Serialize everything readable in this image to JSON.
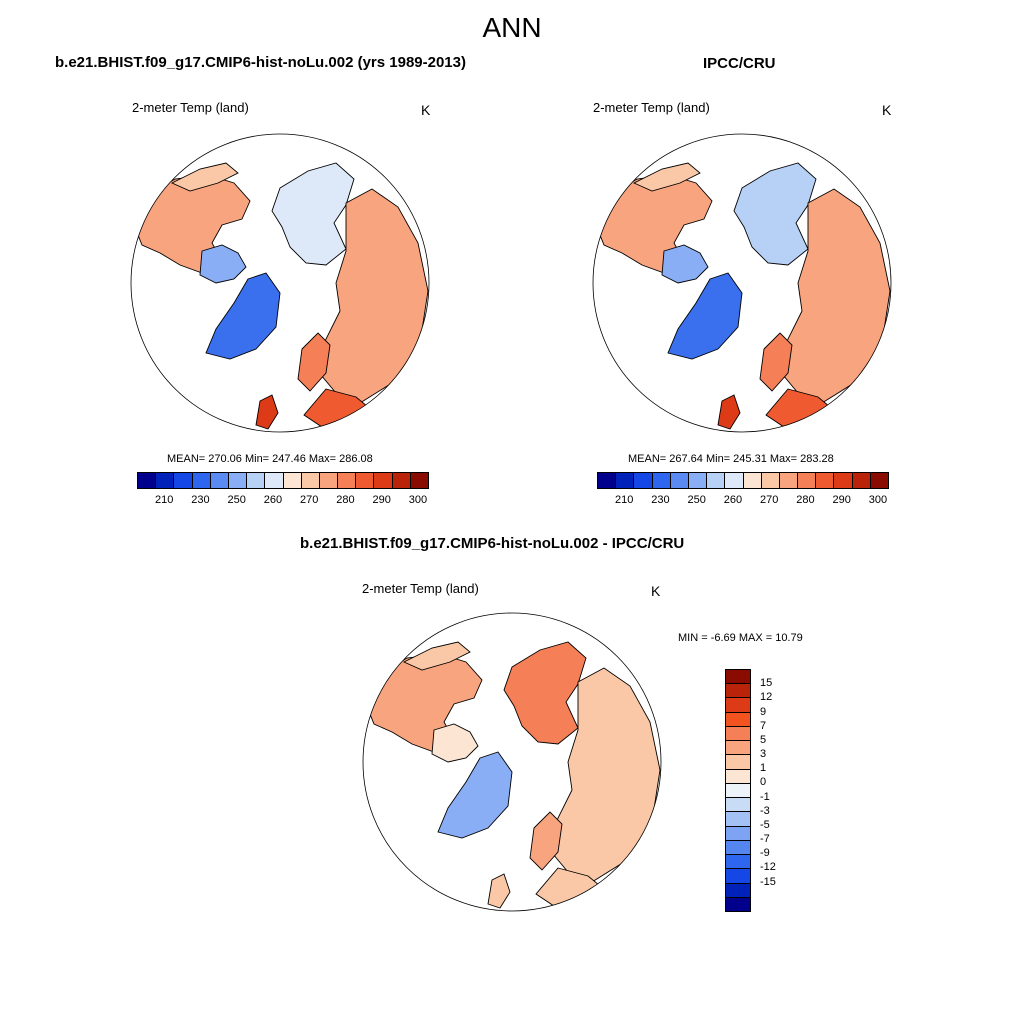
{
  "figure": {
    "title": "ANN"
  },
  "panels": [
    {
      "id": "model",
      "title": "b.e21.BHIST.f09_g17.CMIP6-hist-noLu.002 (yrs 1989-2013)",
      "variable": "2-meter Temp (land)",
      "units": "K",
      "stats": "MEAN= 270.06  Min= 247.46  Max= 286.08"
    },
    {
      "id": "obs",
      "title": "IPCC/CRU",
      "variable": "2-meter Temp (land)",
      "units": "K",
      "stats": "MEAN= 267.64  Min= 245.31  Max= 283.28"
    },
    {
      "id": "diff",
      "title": "b.e21.BHIST.f09_g17.CMIP6-hist-noLu.002 - IPCC/CRU",
      "variable": "2-meter Temp (land)",
      "units": "K",
      "stats": "MIN =  -6.69 MAX =  10.79"
    }
  ],
  "abs_colorbar": {
    "colors": [
      "#00008c",
      "#0022b8",
      "#1546e6",
      "#2e66f0",
      "#5b8af2",
      "#89aef5",
      "#b7d0f6",
      "#dde9f8",
      "#fde5d3",
      "#fbc8a7",
      "#f8a47e",
      "#f57f56",
      "#ef5a31",
      "#dd3a17",
      "#b8230a",
      "#8a0c00"
    ],
    "ticks": [
      "210",
      "230",
      "250",
      "260",
      "270",
      "280",
      "290",
      "300"
    ],
    "tick_index": [
      1,
      3,
      5,
      7,
      9,
      11,
      13,
      15
    ]
  },
  "diff_colorbar": {
    "colors": [
      "#8a0c00",
      "#b8230a",
      "#dd3a17",
      "#f2531f",
      "#f57f56",
      "#f8a47e",
      "#fbc8a7",
      "#fde5d3",
      "#eef3fa",
      "#c9dcf6",
      "#a3c1f4",
      "#7ea3f2",
      "#5585ef",
      "#2e66f0",
      "#1546e6",
      "#0022b8",
      "#00008c"
    ],
    "ticks": [
      "15",
      "12",
      "9",
      "7",
      "5",
      "3",
      "1",
      "0",
      "-1",
      "-3",
      "-5",
      "-7",
      "-9",
      "-12",
      "-15"
    ]
  }
}
